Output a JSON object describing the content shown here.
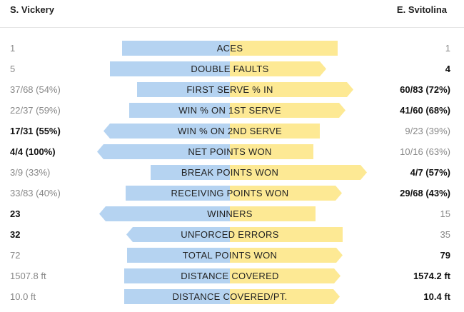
{
  "players": {
    "left": "S. Vickery",
    "right": "E. Svitolina"
  },
  "colors": {
    "left_bar": "#b5d3f1",
    "right_bar": "#fde994"
  },
  "stats": [
    {
      "label": "ACES",
      "left": "1",
      "right": "1",
      "left_ratio": 0.5,
      "right_ratio": 0.5,
      "winner": "none"
    },
    {
      "label": "DOUBLE FAULTS",
      "left": "5",
      "right": "4",
      "left_ratio": 0.556,
      "right_ratio": 0.444,
      "winner": "right"
    },
    {
      "label": "FIRST SERVE % IN",
      "left": "37/68 (54%)",
      "right": "60/83 (72%)",
      "left_ratio": 0.43,
      "right_ratio": 0.57,
      "winner": "right"
    },
    {
      "label": "WIN % ON 1ST SERVE",
      "left": "22/37 (59%)",
      "right": "41/60 (68%)",
      "left_ratio": 0.465,
      "right_ratio": 0.535,
      "winner": "right"
    },
    {
      "label": "WIN % ON 2ND SERVE",
      "left": "17/31 (55%)",
      "right": "9/23 (39%)",
      "left_ratio": 0.585,
      "right_ratio": 0.415,
      "winner": "left"
    },
    {
      "label": "NET POINTS WON",
      "left": "4/4 (100%)",
      "right": "10/16 (63%)",
      "left_ratio": 0.615,
      "right_ratio": 0.385,
      "winner": "left"
    },
    {
      "label": "BREAK POINTS WON",
      "left": "3/9 (33%)",
      "right": "4/7 (57%)",
      "left_ratio": 0.367,
      "right_ratio": 0.633,
      "winner": "right"
    },
    {
      "label": "RECEIVING POINTS WON",
      "left": "33/83 (40%)",
      "right": "29/68 (43%)",
      "left_ratio": 0.482,
      "right_ratio": 0.518,
      "winner": "right"
    },
    {
      "label": "WINNERS",
      "left": "23",
      "right": "15",
      "left_ratio": 0.605,
      "right_ratio": 0.395,
      "winner": "left"
    },
    {
      "label": "UNFORCED ERRORS",
      "left": "32",
      "right": "35",
      "left_ratio": 0.478,
      "right_ratio": 0.522,
      "winner": "left"
    },
    {
      "label": "TOTAL POINTS WON",
      "left": "72",
      "right": "79",
      "left_ratio": 0.477,
      "right_ratio": 0.523,
      "winner": "right"
    },
    {
      "label": "DISTANCE COVERED",
      "left": "1507.8 ft",
      "right": "1574.2 ft",
      "left_ratio": 0.489,
      "right_ratio": 0.511,
      "winner": "right"
    },
    {
      "label": "DISTANCE COVERED/PT.",
      "left": "10.0 ft",
      "right": "10.4 ft",
      "left_ratio": 0.49,
      "right_ratio": 0.51,
      "winner": "right"
    }
  ]
}
